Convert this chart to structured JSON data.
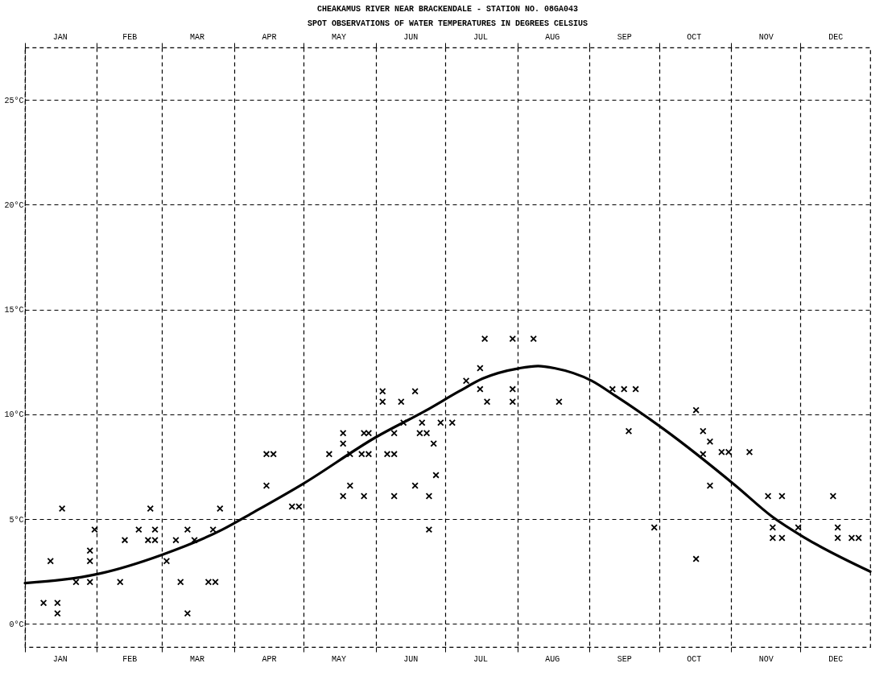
{
  "chart_data": {
    "type": "scatter",
    "title": "CHEAKAMUS RIVER NEAR BRACKENDALE - STATION NO. 08GA043",
    "subtitle": "SPOT OBSERVATIONS OF WATER TEMPERATURES IN DEGREES CELSIUS",
    "xlim": [
      "--01-01",
      "--12-31"
    ],
    "xticks": [
      {
        "value": "--01-01",
        "label": null
      },
      {
        "value": "--01-16",
        "label": "JAN"
      },
      {
        "value": "--02-01",
        "label": null
      },
      {
        "value": "--02-15",
        "label": "FEB"
      },
      {
        "value": "--03-01",
        "label": null
      },
      {
        "value": "--03-16",
        "label": "MAR"
      },
      {
        "value": "--04-01",
        "label": null
      },
      {
        "value": "--04-16",
        "label": "APR"
      },
      {
        "value": "--05-01",
        "label": null
      },
      {
        "value": "--05-16",
        "label": "MAY"
      },
      {
        "value": "--06-01",
        "label": null
      },
      {
        "value": "--06-16",
        "label": "JUN"
      },
      {
        "value": "--07-01",
        "label": null
      },
      {
        "value": "--07-16",
        "label": "JUL"
      },
      {
        "value": "--08-01",
        "label": null
      },
      {
        "value": "--08-16",
        "label": "AUG"
      },
      {
        "value": "--09-01",
        "label": null
      },
      {
        "value": "--09-16",
        "label": "SEP"
      },
      {
        "value": "--10-01",
        "label": null
      },
      {
        "value": "--10-16",
        "label": "OCT"
      },
      {
        "value": "--11-01",
        "label": null
      },
      {
        "value": "--11-16",
        "label": "NOV"
      },
      {
        "value": "--12-01",
        "label": null
      },
      {
        "value": "--12-16",
        "label": "DEC"
      }
    ],
    "x2lim": [
      "--01-01",
      "--12-31"
    ],
    "x2ticks": [
      {
        "value": "--01-01",
        "label": null
      },
      {
        "value": "--01-16",
        "label": "JAN"
      },
      {
        "value": "--02-01",
        "label": null
      },
      {
        "value": "--02-15",
        "label": "FEB"
      },
      {
        "value": "--03-01",
        "label": null
      },
      {
        "value": "--03-16",
        "label": "MAR"
      },
      {
        "value": "--04-01",
        "label": null
      },
      {
        "value": "--04-16",
        "label": "APR"
      },
      {
        "value": "--05-01",
        "label": null
      },
      {
        "value": "--05-16",
        "label": "MAY"
      },
      {
        "value": "--06-01",
        "label": null
      },
      {
        "value": "--06-16",
        "label": "JUN"
      },
      {
        "value": "--07-01",
        "label": null
      },
      {
        "value": "--07-16",
        "label": "JUL"
      },
      {
        "value": "--08-01",
        "label": null
      },
      {
        "value": "--08-16",
        "label": "AUG"
      },
      {
        "value": "--09-01",
        "label": null
      },
      {
        "value": "--09-16",
        "label": "SEP"
      },
      {
        "value": "--10-01",
        "label": null
      },
      {
        "value": "--10-16",
        "label": "OCT"
      },
      {
        "value": "--11-01",
        "label": null
      },
      {
        "value": "--11-16",
        "label": "NOV"
      },
      {
        "value": "--12-01",
        "label": null
      },
      {
        "value": "--12-16",
        "label": "DEC"
      }
    ],
    "ylim": [
      -1.1,
      27.5
    ],
    "yticks": [
      {
        "value": 0,
        "label": "0°C"
      },
      {
        "value": 5,
        "label": "5°C"
      },
      {
        "value": 10,
        "label": "10°C"
      },
      {
        "value": 15,
        "label": "15°C"
      },
      {
        "value": 20,
        "label": "20°C"
      },
      {
        "value": 25,
        "label": "25°C"
      }
    ],
    "grid": true,
    "series": [
      {
        "marker": "cross",
        "color": "#000000",
        "x": [
          "--01-17",
          "--02-24",
          "--03-26",
          "--01-31",
          "--02-19",
          "--02-26",
          "--03-12",
          "--03-23",
          "--02-13",
          "--02-23",
          "--02-26",
          "--03-07",
          "--03-15",
          "--01-29",
          "--01-12",
          "--01-29",
          "--03-03",
          "--01-23",
          "--01-29",
          "--02-11",
          "--03-09",
          "--03-21",
          "--03-24",
          "--01-09",
          "--01-15",
          "--01-15",
          "--03-12",
          "--06-04",
          "--06-18",
          "--06-04",
          "--06-12",
          "--06-13",
          "--06-21",
          "--06-29",
          "--07-04",
          "--05-18",
          "--05-27",
          "--05-29",
          "--06-09",
          "--06-20",
          "--06-23",
          "--05-18",
          "--06-26",
          "--04-15",
          "--04-18",
          "--05-12",
          "--05-21",
          "--05-26",
          "--05-29",
          "--06-06",
          "--06-09",
          "--06-27",
          "--04-15",
          "--05-21",
          "--06-18",
          "--05-18",
          "--05-27",
          "--06-09",
          "--06-24",
          "--04-26",
          "--04-29",
          "--06-24",
          "--07-18",
          "--07-30",
          "--08-08",
          "--07-16",
          "--07-10",
          "--07-16",
          "--07-30",
          "--07-19",
          "--07-30",
          "--08-19",
          "--09-11",
          "--09-16",
          "--09-21",
          "--09-18",
          "--10-17",
          "--10-20",
          "--10-23",
          "--10-20",
          "--10-28",
          "--10-31",
          "--11-09",
          "--10-23",
          "--11-17",
          "--11-23",
          "--12-15",
          "--09-29",
          "--11-19",
          "--11-19",
          "--11-23",
          "--11-30",
          "--10-17",
          "--12-17",
          "--12-17",
          "--12-23",
          "--12-26"
        ],
        "values": [
          5.5,
          5.5,
          5.5,
          4.5,
          4.5,
          4.5,
          4.5,
          4.5,
          4,
          4,
          4,
          4,
          4,
          3.5,
          3,
          3,
          3,
          2,
          2,
          2,
          2,
          2,
          2,
          1,
          1,
          0.5,
          0.5,
          11.1,
          11.1,
          10.6,
          10.6,
          9.6,
          9.6,
          9.6,
          9.6,
          9.1,
          9.1,
          9.1,
          9.1,
          9.1,
          9.1,
          8.6,
          8.6,
          8.1,
          8.1,
          8.1,
          8.1,
          8.1,
          8.1,
          8.1,
          8.1,
          7.1,
          6.6,
          6.6,
          6.6,
          6.1,
          6.1,
          6.1,
          6.1,
          5.6,
          5.6,
          4.5,
          13.6,
          13.6,
          13.6,
          12.2,
          11.6,
          11.2,
          11.2,
          10.6,
          10.6,
          10.6,
          11.2,
          11.2,
          11.2,
          9.2,
          10.2,
          9.2,
          8.7,
          8.1,
          8.2,
          8.2,
          8.2,
          6.6,
          6.1,
          6.1,
          6.1,
          4.6,
          4.6,
          4.1,
          4.1,
          4.6,
          3.1,
          4.6,
          4.1,
          4.1,
          4.1
        ]
      },
      {
        "type": "line",
        "color": "#000000",
        "x": [
          "--01-01",
          "--02-02",
          "--03-01",
          "--03-27",
          "--04-09",
          "--05-01",
          "--06-01",
          "--06-23",
          "--07-07",
          "--07-17",
          "--08-02",
          "--08-10",
          "--08-17",
          "--09-02",
          "--09-12",
          "--10-03",
          "--11-03",
          "--11-19",
          "--12-03",
          "--12-31"
        ],
        "values": [
          1.95,
          2.4,
          3.3,
          4.5,
          5.3,
          6.7,
          8.9,
          10.2,
          11.1,
          11.7,
          12.2,
          12.3,
          12.2,
          11.6,
          10.9,
          9.3,
          6.6,
          5.1,
          4.1,
          2.5
        ]
      }
    ]
  }
}
